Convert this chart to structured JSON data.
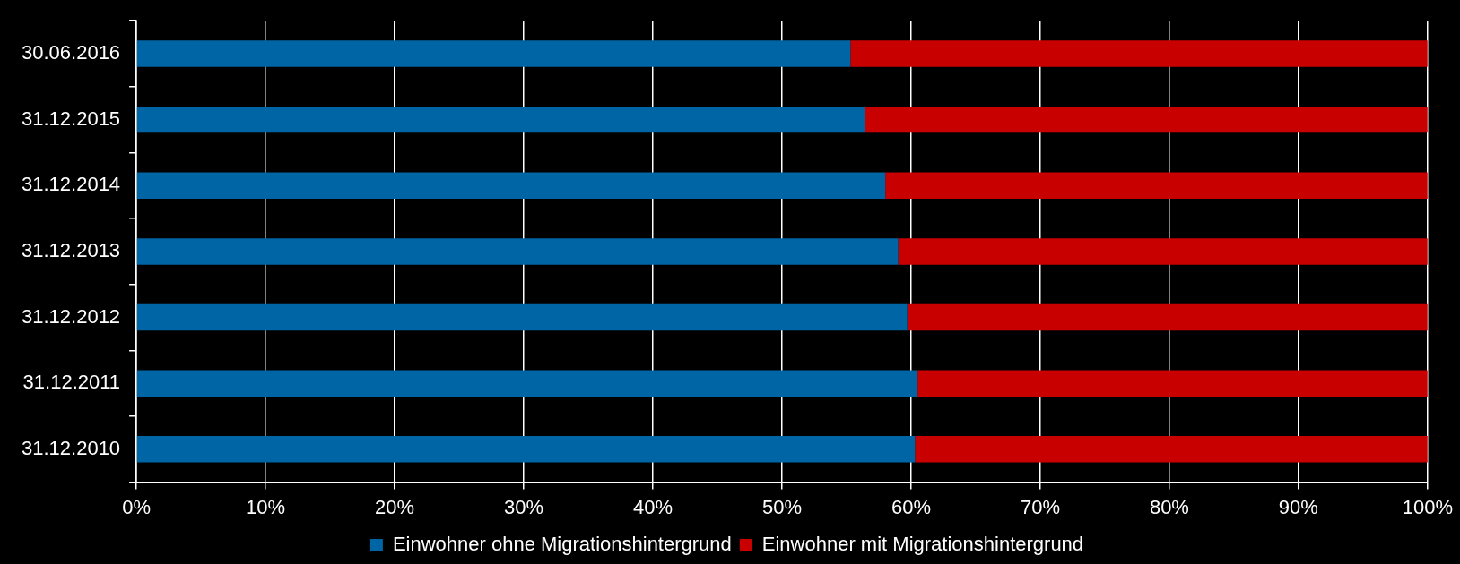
{
  "chart_data": {
    "type": "bar",
    "orientation": "horizontal",
    "stacked": true,
    "categories": [
      "30.06.2016",
      "31.12.2015",
      "31.12.2014",
      "31.12.2013",
      "31.12.2012",
      "31.12.2011",
      "31.12.2010"
    ],
    "series": [
      {
        "name": "Einwohner ohne Migrationshintergrund",
        "color": "#0065a4",
        "values": [
          55.3,
          56.4,
          58.0,
          59.0,
          59.7,
          60.5,
          60.3
        ]
      },
      {
        "name": "Einwohner mit Migrationshintergrund",
        "color": "#c80000",
        "values": [
          44.7,
          43.6,
          42.0,
          41.0,
          40.3,
          39.5,
          39.7
        ]
      }
    ],
    "xlim": [
      0,
      100
    ],
    "xticks": [
      {
        "value": 0,
        "label": "0%"
      },
      {
        "value": 10,
        "label": "10%"
      },
      {
        "value": 20,
        "label": "20%"
      },
      {
        "value": 30,
        "label": "30%"
      },
      {
        "value": 40,
        "label": "40%"
      },
      {
        "value": 50,
        "label": "50%"
      },
      {
        "value": 60,
        "label": "60%"
      },
      {
        "value": 70,
        "label": "70%"
      },
      {
        "value": 80,
        "label": "80%"
      },
      {
        "value": 90,
        "label": "90%"
      },
      {
        "value": 100,
        "label": "100%"
      }
    ],
    "grid": "x",
    "legend": "bottom"
  }
}
